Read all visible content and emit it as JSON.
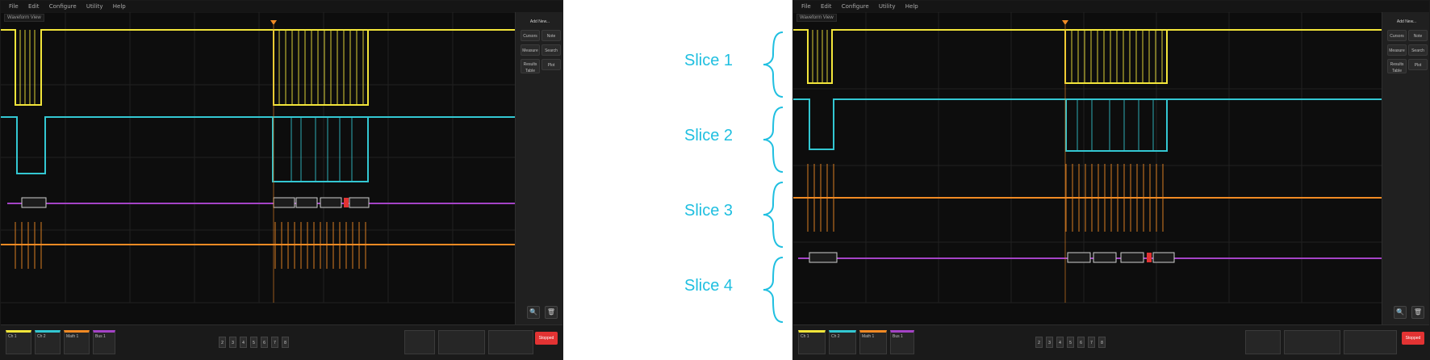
{
  "left_scope": {
    "menu": [
      "File",
      "Edit",
      "Configure",
      "Utility",
      "Help"
    ],
    "tab": "Waveform View",
    "right_panel": {
      "header": "Add New...",
      "buttons": [
        {
          "label": "Cursors"
        },
        {
          "label": "Note"
        },
        {
          "label": "Measure"
        },
        {
          "label": "Search"
        },
        {
          "label": "Results Table"
        },
        {
          "label": "Plot"
        }
      ]
    },
    "bottom": {
      "ch_labels": [
        "Ch 1",
        "Ch 2",
        "Math 1",
        "Bus 1"
      ],
      "numbers": [
        "2",
        "3",
        "4",
        "5",
        "6",
        "7",
        "8"
      ],
      "stop_label": "Stopped"
    }
  },
  "right_scope": {
    "menu": [
      "File",
      "Edit",
      "Configure",
      "Utility",
      "Help"
    ],
    "tab": "Waveform View",
    "right_panel": {
      "header": "Add New...",
      "buttons": [
        {
          "label": "Cursors"
        },
        {
          "label": "Note"
        },
        {
          "label": "Measure"
        },
        {
          "label": "Search"
        },
        {
          "label": "Results Table"
        },
        {
          "label": "Plot"
        }
      ]
    },
    "bottom": {
      "ch_labels": [
        "Ch 1",
        "Ch 2",
        "Math 1",
        "Bus 1"
      ],
      "numbers": [
        "2",
        "3",
        "4",
        "5",
        "6",
        "7",
        "8"
      ],
      "stop_label": "Stopped"
    }
  },
  "slices": [
    "Slice 1",
    "Slice 2",
    "Slice 3",
    "Slice 4"
  ],
  "colors": {
    "ch1": "#f2e53a",
    "ch2": "#33c7d2",
    "ch3": "#f08a24",
    "bus": "#a443c6",
    "slice_text": "#1fbfe0"
  }
}
